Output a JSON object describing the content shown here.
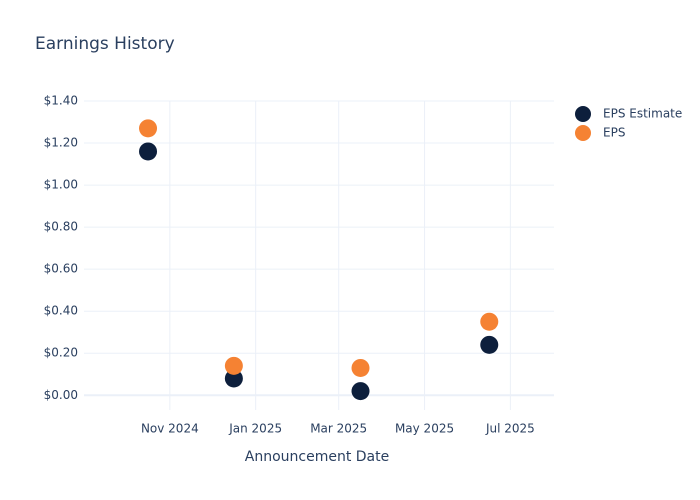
{
  "chart_data": {
    "type": "scatter",
    "title": "Earnings History",
    "x_label": "Announcement Date",
    "x": [
      "2024-10",
      "2024-12",
      "2025-03",
      "2025-06"
    ],
    "series": [
      {
        "name": "EPS Estimate",
        "color": "#0d1f3c",
        "values": [
          1.16,
          0.08,
          0.02,
          0.24
        ]
      },
      {
        "name": "EPS",
        "color": "#f58233",
        "values": [
          1.27,
          0.14,
          0.13,
          0.35
        ]
      }
    ],
    "xlim": [
      "2024-09",
      "2025-08"
    ],
    "xticks": [
      {
        "value": "2024-11",
        "label": "Nov 2024"
      },
      {
        "value": "2025-01",
        "label": "Jan 2025"
      },
      {
        "value": "2025-03",
        "label": "Mar 2025"
      },
      {
        "value": "2025-05",
        "label": "May 2025"
      },
      {
        "value": "2025-07",
        "label": "Jul 2025"
      }
    ],
    "ylim": [
      -0.07,
      1.4
    ],
    "yticks": [
      {
        "value": 0,
        "label": "$0.00"
      },
      {
        "value": 0.2,
        "label": "$0.20"
      },
      {
        "value": 0.4,
        "label": "$0.40"
      },
      {
        "value": 0.6,
        "label": "$0.60"
      },
      {
        "value": 0.8,
        "label": "$0.80"
      },
      {
        "value": 1,
        "label": "$1.00"
      },
      {
        "value": 1.2,
        "label": "$1.20"
      },
      {
        "value": 1.4,
        "label": "$1.40"
      }
    ],
    "grid": true,
    "legend": "top-right"
  }
}
